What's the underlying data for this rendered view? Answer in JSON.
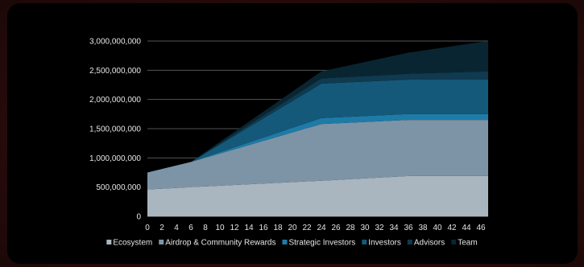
{
  "chart_data": {
    "type": "area",
    "stacked": true,
    "x": [
      0,
      6,
      24,
      36,
      47
    ],
    "y_ticks": [
      "0",
      "500,000,000",
      "1,000,000,000",
      "1,500,000,000",
      "2,000,000,000",
      "2,500,000,000",
      "3,000,000,000"
    ],
    "x_ticks": [
      "0",
      "2",
      "4",
      "6",
      "8",
      "10",
      "12",
      "14",
      "16",
      "18",
      "20",
      "22",
      "24",
      "26",
      "28",
      "30",
      "32",
      "34",
      "36",
      "38",
      "40",
      "42",
      "44",
      "46"
    ],
    "ylim": [
      0,
      3000000000
    ],
    "grid": true,
    "legend_position": "bottom",
    "series": [
      {
        "name": "Ecosystem",
        "color": "#a9b6bf",
        "values": [
          460000000,
          500000000,
          610000000,
          690000000,
          690000000
        ]
      },
      {
        "name": "Airdrop & Community Rewards",
        "color": "#7d94a6",
        "values": [
          290000000,
          430000000,
          970000000,
          960000000,
          960000000
        ]
      },
      {
        "name": "Strategic Investors",
        "color": "#1e7ba8",
        "values": [
          0,
          0,
          100000000,
          100000000,
          100000000
        ]
      },
      {
        "name": "Investors",
        "color": "#145979",
        "values": [
          0,
          0,
          590000000,
          590000000,
          590000000
        ]
      },
      {
        "name": "Advisors",
        "color": "#0f3a50",
        "values": [
          0,
          0,
          90000000,
          100000000,
          140000000
        ]
      },
      {
        "name": "Team",
        "color": "#0a2532",
        "values": [
          0,
          0,
          120000000,
          360000000,
          520000000
        ]
      }
    ]
  }
}
